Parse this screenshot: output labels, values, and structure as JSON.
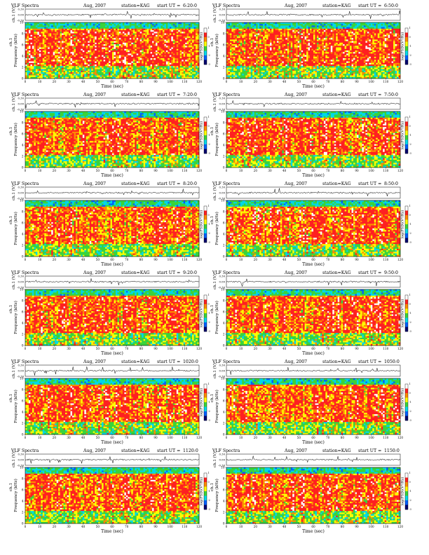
{
  "page": {
    "heading_left": "VLF Spectra",
    "date": "Aug, 2007",
    "station": "station=KAG",
    "start_prefix": "start  UT ="
  },
  "chart_data": [
    {
      "type": "heatmap",
      "start_ut": "6:20:0",
      "seed": 11
    },
    {
      "type": "heatmap",
      "start_ut": "6:50:0",
      "seed": 23
    },
    {
      "type": "heatmap",
      "start_ut": "7:20:0",
      "seed": 37
    },
    {
      "type": "heatmap",
      "start_ut": "7:50:0",
      "seed": 41
    },
    {
      "type": "heatmap",
      "start_ut": "8:20:0",
      "seed": 53
    },
    {
      "type": "heatmap",
      "start_ut": "8:50:0",
      "seed": 67
    },
    {
      "type": "heatmap",
      "start_ut": "9:20:0",
      "seed": 71
    },
    {
      "type": "heatmap",
      "start_ut": "9:50:0",
      "seed": 83
    },
    {
      "type": "heatmap",
      "start_ut": "1020:0",
      "seed": 97
    },
    {
      "type": "heatmap",
      "start_ut": "1050:0",
      "seed": 101
    },
    {
      "type": "heatmap",
      "start_ut": "1120:0",
      "seed": 113
    },
    {
      "type": "heatmap",
      "start_ut": "1150:0",
      "seed": 127
    }
  ],
  "shared": {
    "xlabel": "Time (sec)",
    "x_ticks": [
      "0",
      "10",
      "20",
      "30",
      "40",
      "50",
      "60",
      "70",
      "80",
      "90",
      "100",
      "110",
      "120"
    ],
    "xlim": [
      0,
      120
    ],
    "ylabel_spectrum": "Frequency (kHz)",
    "ylabel_signal": "ch.1 (V)",
    "channel_label": "ch.1",
    "y_ticks_spectrum": [
      "0",
      "2",
      "4",
      "6",
      "8",
      "10"
    ],
    "ylim_spectrum": [
      0,
      10
    ],
    "y_ticks_signal": [
      "-0.30",
      "0.00",
      "0.30"
    ],
    "ylim_signal": [
      -0.3,
      0.3
    ],
    "colorbar_label": "log(PSD)(V²/Hz)",
    "colorbar_ticks": [
      "1",
      "0",
      "-1",
      "-2",
      "-3"
    ],
    "colormap": [
      "#ffffff",
      "#ff2020",
      "#ff8a00",
      "#ffff00",
      "#3ad43a",
      "#00d8e8",
      "#0060ff",
      "#00006e"
    ]
  }
}
